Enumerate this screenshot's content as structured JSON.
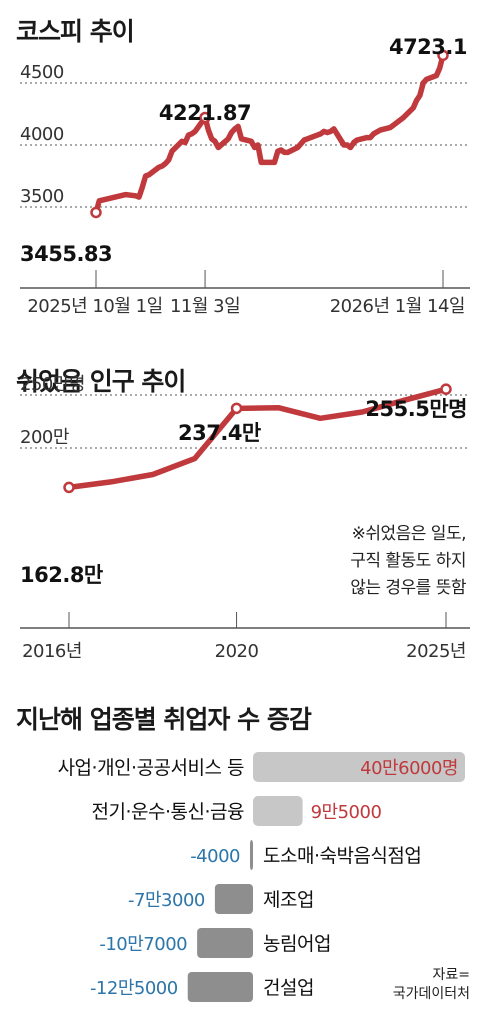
{
  "chart_data": [
    {
      "type": "line",
      "title": "코스피 추이",
      "yticks": [
        "3500",
        "4000",
        "4500"
      ],
      "ylim": [
        3300,
        4800
      ],
      "xticks": [
        "2025년 10월 1일",
        "11월 3일",
        "2026년 1월 14일"
      ],
      "x": [
        "2025-10-01",
        "2025-10-02",
        "2025-10-10",
        "2025-10-13",
        "2025-10-14",
        "2025-10-15",
        "2025-10-16",
        "2025-10-17",
        "2025-10-20",
        "2025-10-21",
        "2025-10-22",
        "2025-10-23",
        "2025-10-24",
        "2025-10-27",
        "2025-10-28",
        "2025-10-29",
        "2025-10-30",
        "2025-10-31",
        "2025-11-03",
        "2025-11-04",
        "2025-11-05",
        "2025-11-06",
        "2025-11-07",
        "2025-11-10",
        "2025-11-11",
        "2025-11-12",
        "2025-11-13",
        "2025-11-14",
        "2025-11-17",
        "2025-11-18",
        "2025-11-19",
        "2025-11-20",
        "2025-11-21",
        "2025-11-24",
        "2025-11-25",
        "2025-11-26",
        "2025-11-27",
        "2025-11-28",
        "2025-12-01",
        "2025-12-02",
        "2025-12-03",
        "2025-12-04",
        "2025-12-05",
        "2025-12-08",
        "2025-12-09",
        "2025-12-10",
        "2025-12-11",
        "2025-12-12",
        "2025-12-15",
        "2025-12-16",
        "2025-12-17",
        "2025-12-18",
        "2025-12-19",
        "2025-12-22",
        "2025-12-23",
        "2025-12-24",
        "2025-12-26",
        "2025-12-29",
        "2025-12-30",
        "2026-01-02",
        "2026-01-05",
        "2026-01-06",
        "2026-01-07",
        "2026-01-08",
        "2026-01-09",
        "2026-01-12",
        "2026-01-13",
        "2026-01-14"
      ],
      "values": [
        3455.83,
        3550,
        3600,
        3590,
        3580,
        3660,
        3750,
        3760,
        3820,
        3830,
        3850,
        3880,
        3950,
        4030,
        4020,
        4080,
        4090,
        4110,
        4221.87,
        4120,
        4050,
        4030,
        3980,
        4050,
        4100,
        4130,
        4150,
        4050,
        4030,
        3980,
        4000,
        3860,
        3860,
        3860,
        3950,
        3960,
        3940,
        3940,
        3980,
        4010,
        4040,
        4050,
        4060,
        4090,
        4110,
        4100,
        4110,
        4130,
        4000,
        4000,
        3980,
        4020,
        4040,
        4060,
        4060,
        4090,
        4120,
        4140,
        4160,
        4220,
        4300,
        4360,
        4400,
        4500,
        4530,
        4560,
        4620,
        4723.1
      ],
      "annotations": [
        "3455.83",
        "4221.87",
        "4723.1"
      ],
      "color": "#c0393d"
    },
    {
      "type": "line",
      "title": "쉬었음 인구 추이",
      "yticks": [
        "200만",
        "250만명"
      ],
      "ylim": [
        150,
        265
      ],
      "xticks": [
        "2016년",
        "2020",
        "2025년"
      ],
      "x": [
        2016,
        2017,
        2018,
        2019,
        2020,
        2021,
        2022,
        2023,
        2024,
        2025
      ],
      "values": [
        162.8,
        168,
        175,
        190,
        237.4,
        238,
        228,
        234,
        245,
        255.5
      ],
      "annotations": [
        "162.8만",
        "237.4만",
        "255.5만명"
      ],
      "note": [
        "※쉬었음은 일도,",
        "구직 활동도 하지",
        "않는 경우를 뜻함"
      ],
      "color": "#c0393d"
    },
    {
      "type": "bar",
      "title": "지난해 업종별 취업자 수 증감",
      "categories": [
        "사업·개인·공공서비스 등",
        "전기·운수·통신·금융",
        "도소매·숙박음식점업",
        "제조업",
        "농림어업",
        "건설업"
      ],
      "values": [
        406000,
        95000,
        -4000,
        -73000,
        -107000,
        -125000
      ],
      "labels": [
        "40만6000명",
        "9만5000",
        "-4000",
        "-7만3000",
        "-10만7000",
        "-12만5000"
      ],
      "colors": {
        "positive_bar": "#c7c7c7",
        "negative_bar": "#8e8e8e",
        "positive_label": "#c0393d",
        "negative_label": "#2c76a9"
      }
    }
  ],
  "source": [
    "자료=",
    "국가데이터처"
  ]
}
